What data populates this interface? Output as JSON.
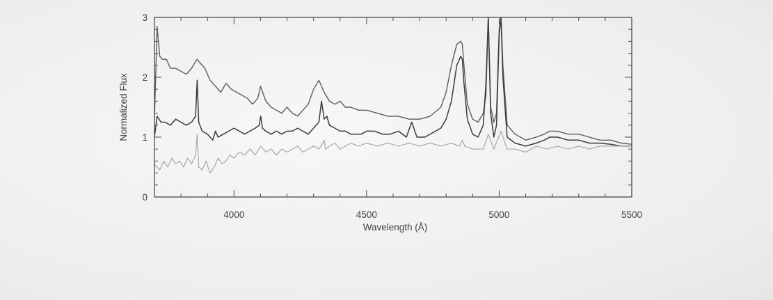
{
  "chart_data": {
    "type": "line",
    "title": "",
    "xlabel": "Wavelength (Å)",
    "ylabel": "Normalized Flux",
    "xlim": [
      3700,
      5500
    ],
    "ylim": [
      0,
      3
    ],
    "x_ticks": [
      "4000",
      "4500",
      "5000",
      "5500"
    ],
    "y_ticks": [
      "0",
      "1",
      "2",
      "3"
    ],
    "grid": false,
    "legend": "none",
    "colors": {
      "top": "#5c5c5c",
      "middle": "#3a3a3a",
      "bottom": "#a7a7a7",
      "axes": "#4a4a4a"
    },
    "series": [
      {
        "x": [
          3700,
          3710,
          3720,
          3730,
          3745,
          3760,
          3780,
          3800,
          3820,
          3840,
          3860,
          3870,
          3890,
          3910,
          3930,
          3950,
          3970,
          3990,
          4010,
          4030,
          4050,
          4070,
          4090,
          4100,
          4120,
          4140,
          4160,
          4180,
          4200,
          4220,
          4240,
          4260,
          4280,
          4300,
          4320,
          4340,
          4360,
          4380,
          4400,
          4420,
          4440,
          4470,
          4500,
          4540,
          4580,
          4620,
          4660,
          4700,
          4740,
          4780,
          4800,
          4820,
          4840,
          4855,
          4861,
          4867,
          4880,
          4900,
          4920,
          4940,
          4950,
          4959,
          4968,
          4980,
          4990,
          5000,
          5007,
          5014,
          5030,
          5060,
          5100,
          5140,
          5170,
          5190,
          5220,
          5260,
          5300,
          5340,
          5380,
          5420,
          5460,
          5500
        ],
        "values": [
          1.3,
          2.85,
          2.35,
          2.3,
          2.3,
          2.15,
          2.15,
          2.1,
          2.05,
          2.15,
          2.3,
          2.25,
          2.15,
          1.95,
          1.85,
          1.75,
          1.9,
          1.8,
          1.75,
          1.7,
          1.65,
          1.55,
          1.65,
          1.85,
          1.6,
          1.5,
          1.45,
          1.4,
          1.5,
          1.4,
          1.35,
          1.45,
          1.55,
          1.8,
          1.95,
          1.75,
          1.6,
          1.55,
          1.6,
          1.5,
          1.5,
          1.45,
          1.45,
          1.4,
          1.35,
          1.35,
          1.3,
          1.3,
          1.35,
          1.5,
          1.75,
          2.2,
          2.55,
          2.6,
          2.55,
          2.2,
          1.55,
          1.3,
          1.25,
          1.4,
          1.7,
          3.0,
          1.5,
          1.25,
          1.4,
          2.8,
          3.0,
          2.2,
          1.2,
          1.05,
          0.95,
          1.0,
          1.05,
          1.1,
          1.1,
          1.05,
          1.05,
          1.0,
          0.95,
          0.95,
          0.9,
          0.88
        ]
      },
      {
        "x": [
          3700,
          3710,
          3725,
          3740,
          3760,
          3780,
          3800,
          3820,
          3840,
          3855,
          3861,
          3867,
          3880,
          3900,
          3920,
          3930,
          3940,
          3960,
          3980,
          4000,
          4020,
          4040,
          4060,
          4080,
          4095,
          4101,
          4107,
          4120,
          4140,
          4160,
          4180,
          4200,
          4220,
          4240,
          4260,
          4280,
          4300,
          4320,
          4330,
          4340,
          4350,
          4360,
          4380,
          4400,
          4420,
          4440,
          4460,
          4480,
          4500,
          4530,
          4560,
          4590,
          4620,
          4650,
          4670,
          4690,
          4700,
          4720,
          4740,
          4760,
          4780,
          4800,
          4820,
          4840,
          4855,
          4861,
          4867,
          4880,
          4900,
          4920,
          4940,
          4950,
          4959,
          4968,
          4980,
          4990,
          5000,
          5007,
          5014,
          5030,
          5060,
          5100,
          5140,
          5170,
          5190,
          5220,
          5260,
          5300,
          5340,
          5380,
          5420,
          5460,
          5500
        ],
        "values": [
          1.0,
          1.35,
          1.25,
          1.25,
          1.2,
          1.3,
          1.25,
          1.2,
          1.25,
          1.35,
          1.95,
          1.25,
          1.1,
          1.05,
          0.95,
          1.1,
          1.0,
          1.05,
          1.1,
          1.15,
          1.1,
          1.05,
          1.1,
          1.15,
          1.2,
          1.35,
          1.15,
          1.1,
          1.05,
          1.1,
          1.05,
          1.1,
          1.1,
          1.15,
          1.1,
          1.05,
          1.15,
          1.25,
          1.6,
          1.3,
          1.35,
          1.2,
          1.15,
          1.1,
          1.1,
          1.05,
          1.05,
          1.05,
          1.1,
          1.1,
          1.05,
          1.05,
          1.1,
          1.0,
          1.25,
          1.0,
          1.0,
          1.0,
          1.05,
          1.1,
          1.15,
          1.3,
          1.6,
          2.2,
          2.35,
          2.3,
          1.9,
          1.3,
          1.05,
          1.0,
          1.2,
          1.9,
          3.0,
          1.4,
          1.0,
          1.2,
          2.7,
          3.0,
          2.0,
          1.0,
          0.9,
          0.85,
          0.9,
          0.95,
          1.0,
          1.0,
          0.95,
          0.95,
          0.9,
          0.9,
          0.88,
          0.85,
          0.85
        ]
      },
      {
        "x": [
          3700,
          3720,
          3735,
          3750,
          3765,
          3780,
          3795,
          3810,
          3825,
          3840,
          3855,
          3861,
          3867,
          3880,
          3895,
          3910,
          3925,
          3940,
          3955,
          3970,
          3985,
          4000,
          4020,
          4040,
          4060,
          4080,
          4100,
          4120,
          4140,
          4160,
          4180,
          4200,
          4220,
          4240,
          4260,
          4280,
          4300,
          4320,
          4335,
          4340,
          4345,
          4360,
          4380,
          4400,
          4420,
          4440,
          4470,
          4500,
          4540,
          4580,
          4620,
          4660,
          4700,
          4740,
          4780,
          4820,
          4850,
          4861,
          4870,
          4900,
          4940,
          4959,
          4980,
          5007,
          5030,
          5060,
          5100,
          5140,
          5180,
          5220,
          5260,
          5300,
          5340,
          5380,
          5420,
          5460,
          5500
        ],
        "values": [
          0.55,
          0.45,
          0.6,
          0.5,
          0.65,
          0.55,
          0.6,
          0.5,
          0.65,
          0.55,
          0.7,
          1.05,
          0.5,
          0.45,
          0.6,
          0.4,
          0.5,
          0.65,
          0.55,
          0.6,
          0.7,
          0.65,
          0.75,
          0.7,
          0.8,
          0.7,
          0.85,
          0.75,
          0.8,
          0.7,
          0.8,
          0.75,
          0.8,
          0.85,
          0.75,
          0.8,
          0.85,
          0.8,
          0.9,
          0.95,
          0.8,
          0.85,
          0.9,
          0.8,
          0.85,
          0.9,
          0.85,
          0.9,
          0.85,
          0.9,
          0.85,
          0.9,
          0.85,
          0.9,
          0.85,
          0.9,
          0.85,
          0.95,
          0.85,
          0.8,
          0.8,
          1.05,
          0.8,
          1.1,
          0.8,
          0.8,
          0.75,
          0.85,
          0.8,
          0.85,
          0.8,
          0.85,
          0.8,
          0.85,
          0.85,
          0.85,
          0.85
        ]
      }
    ]
  }
}
